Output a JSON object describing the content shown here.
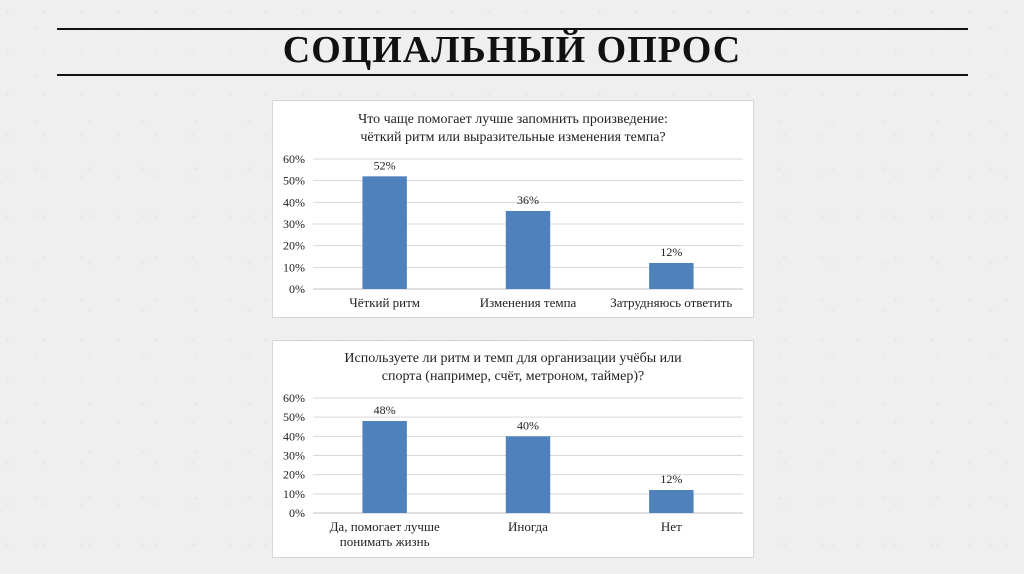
{
  "page": {
    "title": "СОЦИАЛЬНЫЙ ОПРОС"
  },
  "colors": {
    "bar": "#4f81bd",
    "grid": "#d9d9d9",
    "axis": "#bfbfbf"
  },
  "chart_data": [
    {
      "type": "bar",
      "title": [
        "Что чаще помогает лучше запомнить произведение:",
        "чёткий ритм или выразительные изменения темпа?"
      ],
      "categories": [
        [
          "Чёткий ритм"
        ],
        [
          "Изменения темпа"
        ],
        [
          "Затрудняюсь ответить"
        ]
      ],
      "values": [
        52,
        36,
        12
      ],
      "labels": [
        "52%",
        "36%",
        "12%"
      ],
      "yticks": [
        "0%",
        "10%",
        "20%",
        "30%",
        "40%",
        "50%",
        "60%"
      ],
      "ylim": [
        0,
        60
      ],
      "grid": true
    },
    {
      "type": "bar",
      "title": [
        "Используете ли ритм и темп для организации учёбы или",
        "спорта (например, счёт, метроном, таймер)?"
      ],
      "categories": [
        [
          "Да, помогает лучше",
          "понимать жизнь"
        ],
        [
          "Иногда"
        ],
        [
          "Нет"
        ]
      ],
      "values": [
        48,
        40,
        12
      ],
      "labels": [
        "48%",
        "40%",
        "12%"
      ],
      "yticks": [
        "0%",
        "10%",
        "20%",
        "30%",
        "40%",
        "50%",
        "60%"
      ],
      "ylim": [
        0,
        60
      ],
      "grid": true
    }
  ]
}
